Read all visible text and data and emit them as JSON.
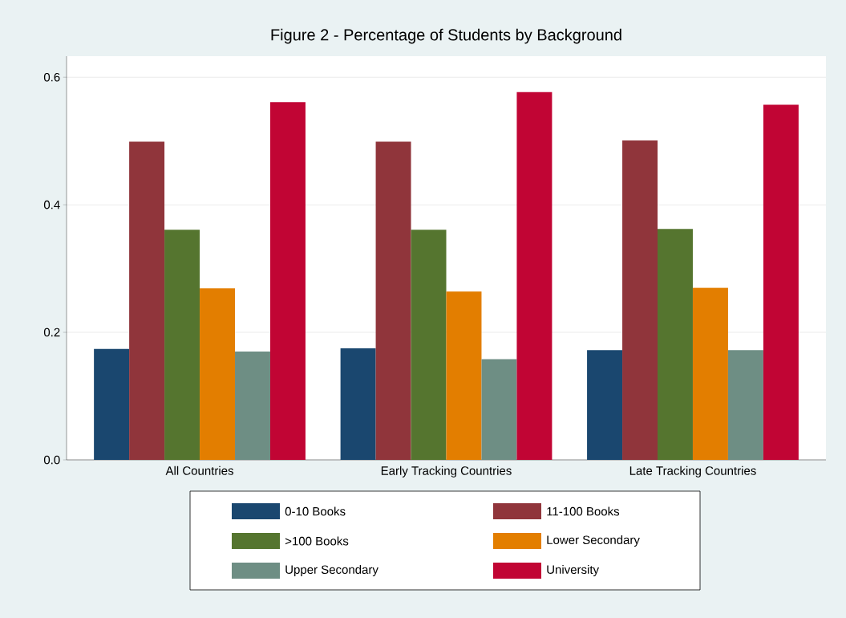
{
  "chart_data": {
    "type": "bar",
    "title": "Figure 2 - Percentage of Students by Background",
    "categories": [
      "All Countries",
      "Early Tracking Countries",
      "Late Tracking Countries"
    ],
    "series": [
      {
        "name": "0-10 Books",
        "color": "#1a476f",
        "values": [
          0.174,
          0.175,
          0.172
        ]
      },
      {
        "name": "11-100 Books",
        "color": "#90353b",
        "values": [
          0.499,
          0.499,
          0.501
        ]
      },
      {
        "name": ">100 Books",
        "color": "#55752f",
        "values": [
          0.361,
          0.361,
          0.362
        ]
      },
      {
        "name": "Lower Secondary",
        "color": "#e37e00",
        "values": [
          0.269,
          0.264,
          0.27
        ]
      },
      {
        "name": "Upper Secondary",
        "color": "#6e8e84",
        "values": [
          0.17,
          0.158,
          0.172
        ]
      },
      {
        "name": "University",
        "color": "#c10534",
        "values": [
          0.561,
          0.577,
          0.557
        ]
      }
    ],
    "ylim": [
      0,
      0.633
    ],
    "yticks": [
      {
        "value": 0,
        "label": "0.0"
      },
      0.2,
      0.4,
      0.6
    ],
    "grid": "y",
    "legend": "bottom"
  }
}
